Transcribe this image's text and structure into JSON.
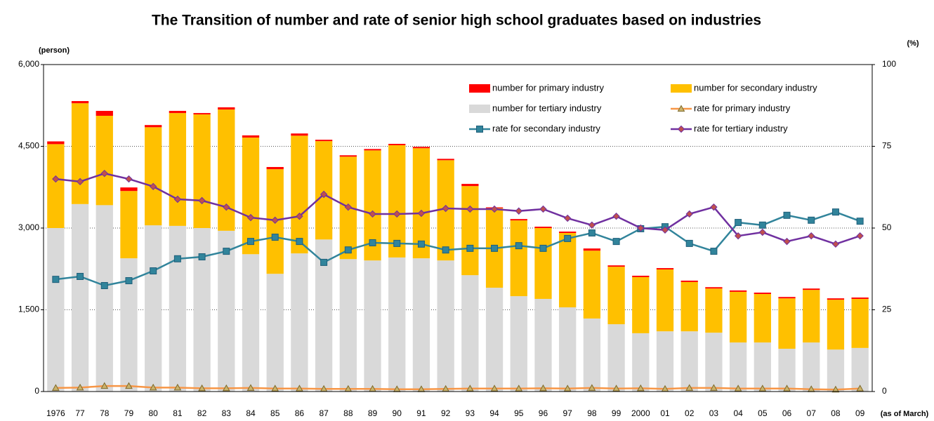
{
  "chart_data": {
    "type": "bar",
    "title": "The Transition of number and rate of senior high school graduates based on industries",
    "y_label": "(person)",
    "y2_label": "(%)",
    "x_label": "(as of March)",
    "categories": [
      "1976",
      "77",
      "78",
      "79",
      "80",
      "81",
      "82",
      "83",
      "84",
      "85",
      "86",
      "87",
      "88",
      "89",
      "90",
      "91",
      "92",
      "93",
      "94",
      "95",
      "96",
      "97",
      "98",
      "99",
      "2000",
      "01",
      "02",
      "03",
      "04",
      "05",
      "06",
      "07",
      "08",
      "09"
    ],
    "ylim": [
      0,
      6000
    ],
    "yticks": [
      0,
      {
        "value": 1500,
        "label": "1,500"
      },
      {
        "value": 3000,
        "label": "3,000"
      },
      {
        "value": 4500,
        "label": "4,500"
      },
      {
        "value": 6000,
        "label": "6,000"
      }
    ],
    "y2lim": [
      0,
      100
    ],
    "y2ticks": [
      0,
      25,
      50,
      75,
      100
    ],
    "grid": true,
    "legend": "upper right",
    "series": [
      {
        "name": "number for primary industry",
        "kind": "bar",
        "color": "#ff0000",
        "values": [
          50,
          40,
          90,
          65,
          40,
          40,
          25,
          40,
          40,
          40,
          40,
          25,
          25,
          25,
          25,
          25,
          25,
          40,
          15,
          25,
          25,
          25,
          40,
          25,
          25,
          25,
          25,
          25,
          25,
          25,
          25,
          25,
          25,
          25
        ]
      },
      {
        "name": "number for secondary industry",
        "kind": "bar",
        "color": "#ffc000",
        "values": [
          1540,
          1850,
          1640,
          1235,
          1800,
          2070,
          2085,
          2225,
          2140,
          1920,
          2160,
          1805,
          1880,
          2020,
          2060,
          2020,
          1840,
          1635,
          1460,
          1390,
          1300,
          1365,
          1245,
          1055,
          1030,
          1135,
          905,
          810,
          930,
          890,
          925,
          965,
          915,
          900
        ]
      },
      {
        "name": "number for tertiary industry",
        "kind": "bar",
        "color": "#d9d9d9",
        "values": [
          3000,
          3440,
          3420,
          2445,
          3050,
          3040,
          3000,
          2950,
          2520,
          2160,
          2535,
          2790,
          2430,
          2405,
          2460,
          2445,
          2405,
          2135,
          1905,
          1750,
          1700,
          1545,
          1340,
          1235,
          1070,
          1105,
          1105,
          1080,
          900,
          900,
          785,
          900,
          770,
          800
        ]
      },
      {
        "name": "rate for primary industry",
        "kind": "line",
        "axis": "y2",
        "color": "#f79646",
        "marker": "triangle",
        "values": [
          1.1,
          1.2,
          1.7,
          1.7,
          1.2,
          1.2,
          1.0,
          1.0,
          1.1,
          0.9,
          0.9,
          0.8,
          0.8,
          0.8,
          0.7,
          0.7,
          0.8,
          0.9,
          0.9,
          0.9,
          1.0,
          0.9,
          1.1,
          0.9,
          1.0,
          0.8,
          1.1,
          1.1,
          0.9,
          0.9,
          0.9,
          0.7,
          0.6,
          0.9
        ]
      },
      {
        "name": "rate for secondary industry",
        "kind": "line",
        "axis": "y2",
        "color": "#31849b",
        "marker": "square",
        "values": [
          34.3,
          35.2,
          32.4,
          33.9,
          36.9,
          40.6,
          41.2,
          42.9,
          45.9,
          47.2,
          45.9,
          39.5,
          43.3,
          45.5,
          45.3,
          45.1,
          43.3,
          43.8,
          43.8,
          44.6,
          43.8,
          46.8,
          48.5,
          45.9,
          49.8,
          50.4,
          45.3,
          42.9,
          51.7,
          50.9,
          53.9,
          52.4,
          54.9,
          52.1
        ]
      },
      {
        "name": "rate for tertiary industry",
        "kind": "line",
        "axis": "y2",
        "color": "#7030a0",
        "marker": "diamond",
        "values": [
          65.0,
          64.2,
          66.7,
          65.0,
          62.7,
          58.8,
          58.4,
          56.4,
          53.2,
          52.4,
          53.6,
          60.3,
          56.4,
          54.3,
          54.3,
          54.5,
          56.0,
          55.8,
          55.8,
          55.2,
          55.8,
          53.0,
          50.9,
          53.6,
          50.0,
          49.4,
          54.3,
          56.4,
          47.6,
          48.7,
          45.9,
          47.6,
          45.1,
          47.6
        ]
      }
    ]
  }
}
